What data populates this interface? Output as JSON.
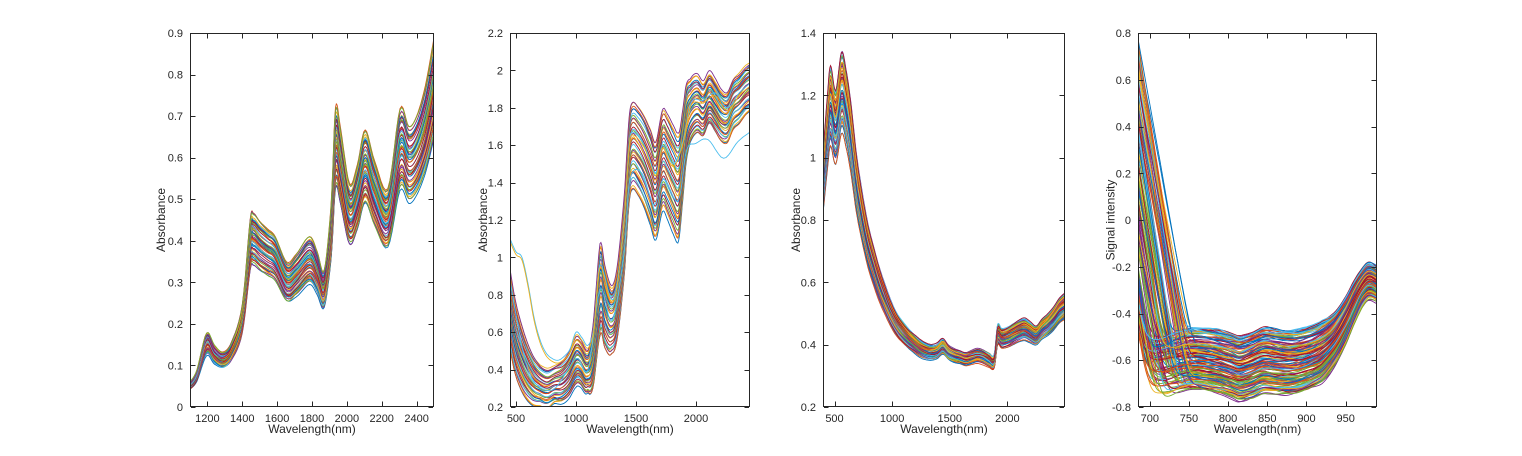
{
  "figure": {
    "background": "#ffffff"
  },
  "chart_data": {
    "type": "line",
    "palette": [
      "#0072BD",
      "#D95319",
      "#EDB120",
      "#7E2F8E",
      "#77AC30",
      "#4DBEEE",
      "#A2142F"
    ],
    "axis_color": "#262626",
    "grid": false,
    "legend": "none",
    "plots": [
      {
        "xlabel": "Wavelength(nm)",
        "ylabel": "Absorbance",
        "xlim": [
          1100,
          2500
        ],
        "ylim": [
          0,
          0.9
        ],
        "xtick_values": [
          1200,
          1400,
          1600,
          1800,
          2000,
          2200,
          2400
        ],
        "xtick_labels": [
          "1200",
          "1400",
          "1600",
          "1800",
          "2000",
          "2200",
          "2400"
        ],
        "ytick_values": [
          0,
          0.1,
          0.2,
          0.3,
          0.4,
          0.5,
          0.6,
          0.7,
          0.8,
          0.9
        ],
        "ytick_labels": [
          "0",
          "0.1",
          "0.2",
          "0.3",
          "0.4",
          "0.5",
          "0.6",
          "0.7",
          "0.8",
          "0.9"
        ],
        "n_curves": 54,
        "model": {
          "kind": "scale",
          "pivot": 0,
          "smin": 0.86,
          "smax": 1.17,
          "jitter": 0.05,
          "noise": 0.005,
          "seed": 7
        },
        "base_x": [
          1100,
          1140,
          1195,
          1240,
          1290,
          1340,
          1400,
          1445,
          1465,
          1500,
          1545,
          1590,
          1655,
          1710,
          1785,
          1830,
          1870,
          1910,
          1935,
          1965,
          2015,
          2060,
          2105,
          2160,
          2235,
          2305,
          2355,
          2400,
          2450,
          2500
        ],
        "base_y": [
          0.052,
          0.075,
          0.15,
          0.125,
          0.112,
          0.135,
          0.21,
          0.385,
          0.4,
          0.385,
          0.37,
          0.355,
          0.3,
          0.315,
          0.35,
          0.32,
          0.282,
          0.42,
          0.615,
          0.57,
          0.46,
          0.5,
          0.575,
          0.51,
          0.452,
          0.615,
          0.58,
          0.6,
          0.66,
          0.76
        ]
      },
      {
        "xlabel": "Wavelength(nm)",
        "ylabel": "Absorbance",
        "xlim": [
          450,
          2450
        ],
        "ylim": [
          0.2,
          2.2
        ],
        "xtick_values": [
          500,
          1000,
          1500,
          2000
        ],
        "xtick_labels": [
          "500",
          "1000",
          "1500",
          "2000"
        ],
        "ytick_values": [
          0.2,
          0.4,
          0.6,
          0.8,
          1,
          1.2,
          1.4,
          1.6,
          1.8,
          2,
          2.2
        ],
        "ytick_labels": [
          "0.2",
          "0.4",
          "0.6",
          "0.8",
          "1",
          "1.2",
          "1.4",
          "1.6",
          "1.8",
          "2",
          "2.2"
        ],
        "n_curves": 39,
        "model": {
          "kind": "offset",
          "noise": 0.013,
          "seed": 21
        },
        "base_x": [
          450,
          490,
          530,
          580,
          640,
          700,
          760,
          820,
          880,
          940,
          1000,
          1040,
          1090,
          1140,
          1200,
          1240,
          1290,
          1340,
          1400,
          1440,
          1470,
          1520,
          1570,
          1620,
          1665,
          1720,
          1760,
          1810,
          1855,
          1890,
          1920,
          1960,
          2010,
          2060,
          2110,
          2160,
          2210,
          2260,
          2310,
          2360,
          2410,
          2450
        ],
        "base_y": [
          0.72,
          0.58,
          0.49,
          0.41,
          0.345,
          0.315,
          0.3,
          0.32,
          0.33,
          0.37,
          0.44,
          0.43,
          0.385,
          0.46,
          0.82,
          0.73,
          0.66,
          0.74,
          1.1,
          1.5,
          1.6,
          1.57,
          1.51,
          1.43,
          1.36,
          1.52,
          1.49,
          1.42,
          1.38,
          1.55,
          1.72,
          1.79,
          1.82,
          1.79,
          1.85,
          1.81,
          1.76,
          1.75,
          1.82,
          1.85,
          1.89,
          1.91
        ],
        "spread_x": [
          450,
          700,
          820,
          1000,
          1100,
          1200,
          1300,
          1450,
          1650,
          1850,
          1950,
          2100,
          2450
        ],
        "spread_w": [
          0.44,
          0.22,
          0.2,
          0.26,
          0.22,
          0.5,
          0.36,
          0.46,
          0.52,
          0.58,
          0.34,
          0.28,
          0.26
        ],
        "outliers": [
          {
            "color": "#4DBEEE",
            "x": [
              450,
              600,
              800,
              1000,
              1100,
              1200,
              1300,
              1400,
              1450,
              1550,
              1650,
              1730,
              1850,
              1920,
              2000,
              2100,
              2230,
              2350,
              2450
            ],
            "y": [
              0.88,
              0.4,
              0.29,
              0.46,
              0.4,
              0.83,
              0.66,
              1.02,
              1.42,
              1.45,
              1.28,
              1.42,
              1.3,
              1.57,
              1.61,
              1.63,
              1.53,
              1.62,
              1.67
            ]
          },
          {
            "color": "#4DBEEE",
            "x": [
              450,
              500,
              550,
              600,
              650,
              700,
              750,
              800,
              850,
              900,
              950,
              1000,
              1050,
              1100,
              1150,
              1200,
              1290,
              1340,
              1400,
              1440,
              1470,
              1570,
              1665,
              1720,
              1810,
              1890,
              1960,
              2060,
              2160,
              2260,
              2360,
              2450
            ],
            "y": [
              1.1,
              1.03,
              1.0,
              0.86,
              0.68,
              0.56,
              0.49,
              0.46,
              0.45,
              0.47,
              0.51,
              0.6,
              0.57,
              0.53,
              0.63,
              0.96,
              0.78,
              0.85,
              1.2,
              1.58,
              1.67,
              1.6,
              1.45,
              1.6,
              1.5,
              1.62,
              1.83,
              1.84,
              1.88,
              1.8,
              1.88,
              1.93
            ]
          },
          {
            "color": "#EDB120",
            "x": [
              450,
              500,
              550,
              600,
              650,
              700,
              750,
              800,
              850,
              900,
              950,
              1000,
              1050,
              1100,
              1150,
              1200,
              1290,
              1340,
              1400,
              1440,
              1470,
              1570,
              1665,
              1720,
              1810,
              1890,
              1960,
              2060,
              2160,
              2260,
              2360,
              2450
            ],
            "y": [
              1.085,
              1.015,
              0.985,
              0.845,
              0.665,
              0.545,
              0.475,
              0.445,
              0.435,
              0.455,
              0.495,
              0.585,
              0.555,
              0.515,
              0.615,
              0.945,
              0.765,
              0.835,
              1.185,
              1.565,
              1.655,
              1.585,
              1.435,
              1.585,
              1.485,
              1.605,
              1.815,
              1.825,
              1.865,
              1.785,
              1.865,
              1.915
            ]
          }
        ]
      },
      {
        "xlabel": "Wavelength(nm)",
        "ylabel": "Absorbance",
        "xlim": [
          400,
          2500
        ],
        "ylim": [
          0.2,
          1.4
        ],
        "xtick_values": [
          500,
          1000,
          1500,
          2000
        ],
        "xtick_labels": [
          "500",
          "1000",
          "1500",
          "2000"
        ],
        "ytick_values": [
          0.2,
          0.4,
          0.6,
          0.8,
          1,
          1.2,
          1.4
        ],
        "ytick_labels": [
          "0.2",
          "0.4",
          "0.6",
          "0.8",
          "1",
          "1.2",
          "1.4"
        ],
        "n_curves": 63,
        "model": {
          "kind": "scale",
          "pivot": 0.2,
          "smin": 0.88,
          "smax": 1.13,
          "jitter": 0.04,
          "noise": 0.006,
          "seed": 33
        },
        "base_x": [
          400,
          435,
          465,
          510,
          560,
          600,
          640,
          690,
          740,
          790,
          840,
          890,
          940,
          990,
          1040,
          1090,
          1140,
          1190,
          1240,
          1290,
          1340,
          1390,
          1440,
          1490,
          1540,
          1590,
          1640,
          1690,
          1740,
          1790,
          1840,
          1885,
          1915,
          1950,
          2000,
          2050,
          2100,
          2150,
          2200,
          2250,
          2300,
          2350,
          2400,
          2450,
          2500
        ],
        "base_y": [
          0.92,
          1.07,
          1.17,
          1.1,
          1.21,
          1.16,
          1.07,
          0.92,
          0.81,
          0.72,
          0.655,
          0.595,
          0.545,
          0.5,
          0.465,
          0.44,
          0.42,
          0.405,
          0.39,
          0.38,
          0.375,
          0.38,
          0.395,
          0.375,
          0.365,
          0.36,
          0.355,
          0.36,
          0.365,
          0.36,
          0.35,
          0.345,
          0.43,
          0.42,
          0.425,
          0.435,
          0.445,
          0.45,
          0.44,
          0.43,
          0.45,
          0.465,
          0.485,
          0.51,
          0.525
        ]
      },
      {
        "xlabel": "Wavelength(nm)",
        "ylabel": "Signal intensity",
        "xlim": [
          685,
          990
        ],
        "ylim": [
          -0.8,
          0.8
        ],
        "xtick_values": [
          700,
          750,
          800,
          850,
          900,
          950
        ],
        "xtick_labels": [
          "700",
          "750",
          "800",
          "850",
          "900",
          "950"
        ],
        "ytick_values": [
          -0.8,
          -0.6,
          -0.4,
          -0.2,
          0,
          0.2,
          0.4,
          0.6,
          0.8
        ],
        "ytick_labels": [
          "-0.8",
          "-0.6",
          "-0.4",
          "-0.2",
          "0",
          "0.2",
          "0.4",
          "0.6",
          "0.8"
        ],
        "n_curves": 150,
        "model": {
          "kind": "fan",
          "vmin": -0.55,
          "vmax": 0.78,
          "slope": 0.02,
          "slope_jitter": 0.3,
          "sharpness": 14,
          "noise": 0.01,
          "seed": 55
        },
        "base_x": [
          685,
          695,
          705,
          715,
          730,
          745,
          760,
          775,
          790,
          805,
          815,
          830,
          845,
          860,
          875,
          890,
          905,
          920,
          935,
          950,
          962,
          972,
          980,
          990
        ],
        "base_y": [
          -0.6,
          -0.625,
          -0.635,
          -0.63,
          -0.615,
          -0.6,
          -0.595,
          -0.6,
          -0.61,
          -0.625,
          -0.635,
          -0.62,
          -0.6,
          -0.605,
          -0.61,
          -0.605,
          -0.59,
          -0.565,
          -0.515,
          -0.43,
          -0.345,
          -0.285,
          -0.26,
          -0.275
        ],
        "spread_x": [
          685,
          750,
          850,
          920,
          970,
          990
        ],
        "spread_w": [
          0.26,
          0.26,
          0.28,
          0.26,
          0.16,
          0.15
        ]
      }
    ]
  }
}
